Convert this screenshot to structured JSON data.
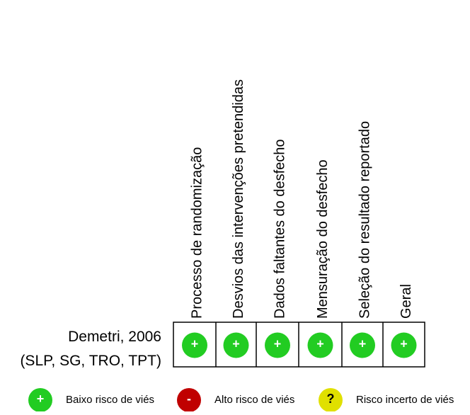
{
  "domains": [
    "Processo de randomização",
    "Desvios das intervenções pretendidas",
    "Dados faltantes do desfecho",
    "Mensuração do desfecho",
    "Seleção do resultado reportado",
    "Geral"
  ],
  "studies": [
    {
      "name": "Demetri, 2006",
      "detail": "(SLP, SG, TRO, TPT)",
      "judgements": [
        "+",
        "+",
        "+",
        "+",
        "+",
        "+"
      ]
    }
  ],
  "legend": [
    {
      "symbol": "+",
      "label": "Baixo risco de viés",
      "color": "#22cc22"
    },
    {
      "symbol": "-",
      "label": "Alto risco de viés",
      "color": "#c00000"
    },
    {
      "symbol": "?",
      "label": "Risco incerto de viés",
      "color": "#e0e000"
    }
  ]
}
